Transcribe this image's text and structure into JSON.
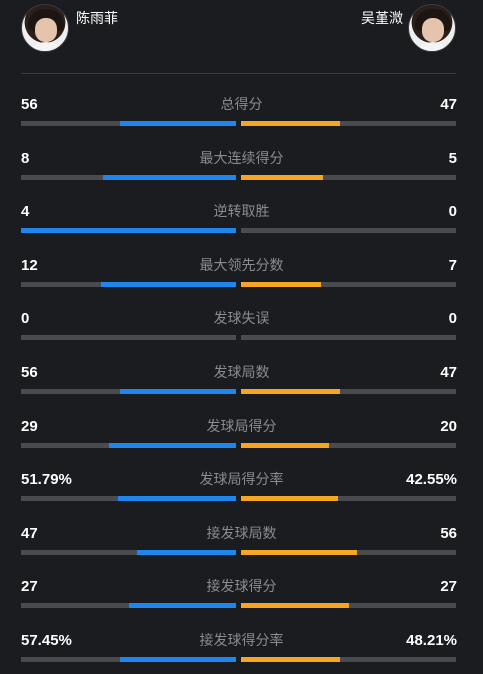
{
  "players": {
    "left": {
      "name": "陈雨菲",
      "color": "#1e86ec"
    },
    "right": {
      "name": "吴堇溦",
      "color": "#f5a623"
    }
  },
  "stats": [
    {
      "label": "总得分",
      "left": "56",
      "right": "47",
      "left_share": 0.54,
      "right_share": 0.46
    },
    {
      "label": "最大连续得分",
      "left": "8",
      "right": "5",
      "left_share": 0.62,
      "right_share": 0.38
    },
    {
      "label": "逆转取胜",
      "left": "4",
      "right": "0",
      "left_share": 1.0,
      "right_share": 0.0
    },
    {
      "label": "最大领先分数",
      "left": "12",
      "right": "7",
      "left_share": 0.63,
      "right_share": 0.37
    },
    {
      "label": "发球失误",
      "left": "0",
      "right": "0",
      "left_share": 0.0,
      "right_share": 0.0
    },
    {
      "label": "发球局数",
      "left": "56",
      "right": "47",
      "left_share": 0.54,
      "right_share": 0.46
    },
    {
      "label": "发球局得分",
      "left": "29",
      "right": "20",
      "left_share": 0.59,
      "right_share": 0.41
    },
    {
      "label": "发球局得分率",
      "left": "51.79%",
      "right": "42.55%",
      "left_share": 0.55,
      "right_share": 0.45
    },
    {
      "label": "接发球局数",
      "left": "47",
      "right": "56",
      "left_share": 0.46,
      "right_share": 0.54
    },
    {
      "label": "接发球得分",
      "left": "27",
      "right": "27",
      "left_share": 0.5,
      "right_share": 0.5
    },
    {
      "label": "接发球得分率",
      "left": "57.45%",
      "right": "48.21%",
      "left_share": 0.54,
      "right_share": 0.46
    }
  ]
}
